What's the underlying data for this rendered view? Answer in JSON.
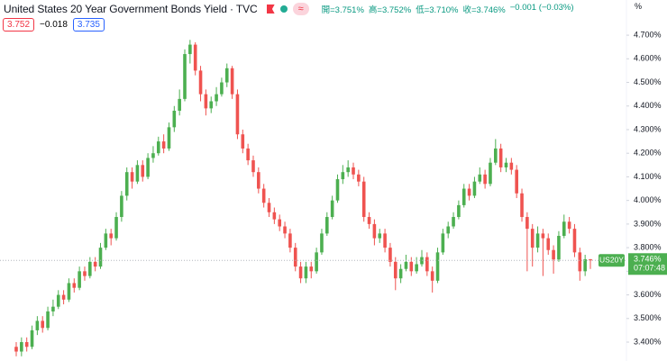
{
  "header": {
    "title": "United States 20 Year Government Bonds Yield · TVC",
    "ohlc": [
      "開=3.751%",
      "高=3.752%",
      "低=3.710%",
      "收=3.746%",
      "−0.001 (−0.03%)"
    ],
    "sell": "3.752",
    "spread": "−0.018",
    "buy": "3.735",
    "unit": "%"
  },
  "chart_data": {
    "type": "candlestick",
    "symbol": "US20Y",
    "last_price": "3.746%",
    "countdown": "07:07:48",
    "up_color": "#4caf50",
    "down_color": "#ef5350",
    "grid": false,
    "ylim": [
      3.32,
      4.849
    ],
    "yticks": [
      {
        "value": 3.4,
        "label": "3.400%"
      },
      {
        "value": 3.5,
        "label": "3.500%"
      },
      {
        "value": 3.6,
        "label": "3.600%"
      },
      {
        "value": 3.7,
        "label": "3.700%"
      },
      {
        "value": 3.8,
        "label": "3.800%"
      },
      {
        "value": 3.9,
        "label": "3.900%"
      },
      {
        "value": 4.0,
        "label": "4.000%"
      },
      {
        "value": 4.1,
        "label": "4.100%"
      },
      {
        "value": 4.2,
        "label": "4.200%"
      },
      {
        "value": 4.3,
        "label": "4.300%"
      },
      {
        "value": 4.4,
        "label": "4.400%"
      },
      {
        "value": 4.5,
        "label": "4.500%"
      },
      {
        "value": 4.6,
        "label": "4.600%"
      },
      {
        "value": 4.7,
        "label": "4.700%"
      }
    ],
    "open": [
      3.38,
      3.36,
      3.4,
      3.38,
      3.45,
      3.49,
      3.46,
      3.53,
      3.55,
      3.6,
      3.58,
      3.65,
      3.63,
      3.7,
      3.68,
      3.74,
      3.72,
      3.8,
      3.86,
      3.84,
      3.93,
      4.02,
      4.12,
      4.08,
      4.15,
      4.1,
      4.18,
      4.2,
      4.25,
      4.22,
      4.31,
      4.38,
      4.43,
      4.62,
      4.66,
      4.55,
      4.45,
      4.39,
      4.42,
      4.45,
      4.5,
      4.56,
      4.45,
      4.28,
      4.22,
      4.17,
      4.12,
      4.05,
      3.99,
      3.95,
      3.92,
      3.89,
      3.86,
      3.8,
      3.72,
      3.67,
      3.72,
      3.7,
      3.78,
      3.86,
      3.93,
      4.0,
      4.09,
      4.12,
      4.14,
      4.11,
      4.08,
      3.93,
      3.9,
      3.84,
      3.86,
      3.8,
      3.74,
      3.67,
      3.71,
      3.74,
      3.7,
      3.73,
      3.76,
      3.7,
      3.66,
      3.78,
      3.86,
      3.89,
      3.93,
      3.98,
      4.05,
      4.02,
      4.08,
      4.11,
      4.07,
      4.16,
      4.22,
      4.14,
      4.16,
      4.13,
      4.03,
      3.93,
      3.88,
      3.8,
      3.86,
      3.84,
      3.79,
      3.75,
      3.85,
      3.91,
      3.88,
      3.78,
      3.7,
      3.751
    ],
    "high": [
      3.4,
      3.42,
      3.42,
      3.47,
      3.51,
      3.51,
      3.55,
      3.58,
      3.62,
      3.62,
      3.67,
      3.67,
      3.72,
      3.72,
      3.76,
      3.76,
      3.82,
      3.88,
      3.88,
      3.95,
      4.04,
      4.14,
      4.14,
      4.17,
      4.17,
      4.2,
      4.23,
      4.27,
      4.28,
      4.33,
      4.4,
      4.47,
      4.64,
      4.68,
      4.67,
      4.57,
      4.47,
      4.44,
      4.48,
      4.52,
      4.58,
      4.57,
      4.47,
      4.3,
      4.24,
      4.19,
      4.14,
      4.07,
      4.01,
      3.97,
      3.94,
      3.91,
      3.88,
      3.82,
      3.74,
      3.74,
      3.74,
      3.8,
      3.88,
      3.95,
      4.02,
      4.11,
      4.15,
      4.17,
      4.16,
      4.13,
      4.1,
      3.95,
      3.92,
      3.88,
      3.88,
      3.82,
      3.76,
      3.73,
      3.77,
      3.76,
      3.76,
      3.79,
      3.78,
      3.72,
      3.8,
      3.88,
      3.91,
      3.95,
      4.0,
      4.07,
      4.07,
      4.1,
      4.14,
      4.13,
      4.18,
      4.26,
      4.24,
      4.18,
      4.18,
      4.15,
      4.05,
      3.95,
      3.9,
      3.89,
      3.88,
      3.86,
      3.81,
      3.87,
      3.94,
      3.93,
      3.9,
      3.8,
      3.77,
      3.752
    ],
    "low": [
      3.34,
      3.34,
      3.36,
      3.37,
      3.43,
      3.44,
      3.45,
      3.51,
      3.54,
      3.56,
      3.57,
      3.61,
      3.62,
      3.66,
      3.67,
      3.7,
      3.71,
      3.79,
      3.81,
      3.83,
      3.91,
      4.0,
      4.05,
      4.07,
      4.08,
      4.09,
      4.16,
      4.19,
      4.2,
      4.21,
      4.29,
      4.36,
      4.42,
      4.58,
      4.53,
      4.42,
      4.36,
      4.37,
      4.4,
      4.44,
      4.48,
      4.43,
      4.26,
      4.2,
      4.15,
      4.1,
      4.03,
      3.97,
      3.93,
      3.9,
      3.87,
      3.84,
      3.78,
      3.7,
      3.65,
      3.65,
      3.67,
      3.69,
      3.77,
      3.85,
      3.92,
      3.99,
      4.07,
      4.1,
      4.09,
      4.06,
      3.91,
      3.88,
      3.81,
      3.82,
      3.78,
      3.72,
      3.62,
      3.65,
      3.7,
      3.68,
      3.69,
      3.72,
      3.68,
      3.61,
      3.65,
      3.77,
      3.84,
      3.88,
      3.92,
      3.97,
      4.0,
      4.01,
      4.07,
      4.05,
      4.06,
      4.15,
      4.12,
      4.12,
      4.11,
      4.01,
      3.91,
      3.7,
      3.72,
      3.78,
      3.68,
      3.77,
      3.69,
      3.74,
      3.84,
      3.86,
      3.76,
      3.66,
      3.68,
      3.71
    ],
    "close": [
      3.36,
      3.4,
      3.38,
      3.45,
      3.49,
      3.46,
      3.53,
      3.55,
      3.6,
      3.58,
      3.65,
      3.63,
      3.7,
      3.68,
      3.74,
      3.72,
      3.8,
      3.86,
      3.84,
      3.93,
      4.02,
      4.12,
      4.08,
      4.15,
      4.1,
      4.18,
      4.2,
      4.25,
      4.22,
      4.31,
      4.38,
      4.43,
      4.62,
      4.66,
      4.55,
      4.45,
      4.39,
      4.42,
      4.45,
      4.5,
      4.56,
      4.45,
      4.28,
      4.22,
      4.17,
      4.12,
      4.05,
      3.99,
      3.95,
      3.92,
      3.89,
      3.86,
      3.8,
      3.72,
      3.67,
      3.72,
      3.7,
      3.78,
      3.86,
      3.93,
      4.0,
      4.09,
      4.12,
      4.14,
      4.11,
      4.08,
      3.93,
      3.9,
      3.84,
      3.86,
      3.8,
      3.74,
      3.67,
      3.71,
      3.74,
      3.7,
      3.73,
      3.76,
      3.7,
      3.66,
      3.78,
      3.86,
      3.89,
      3.93,
      3.98,
      4.05,
      4.02,
      4.08,
      4.11,
      4.07,
      4.16,
      4.22,
      4.14,
      4.16,
      4.13,
      4.03,
      3.93,
      3.88,
      3.8,
      3.86,
      3.84,
      3.79,
      3.75,
      3.85,
      3.91,
      3.88,
      3.78,
      3.7,
      3.751,
      3.746
    ]
  }
}
